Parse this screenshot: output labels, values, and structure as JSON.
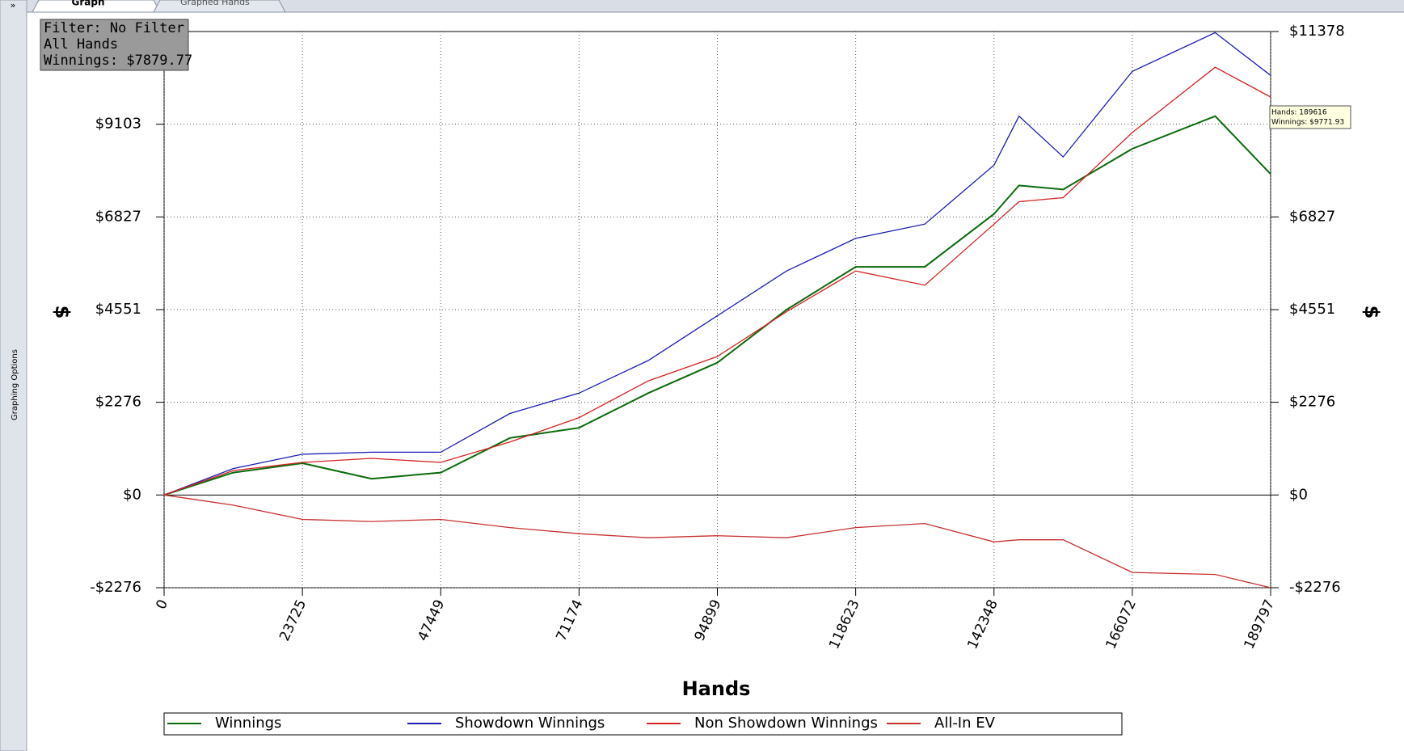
{
  "ui": {
    "sidebar_button": "»",
    "sidebar_label": "Graphing Options",
    "tabs": [
      "Graph",
      "Graphed Hands"
    ],
    "info_box": [
      "Filter: No Filter",
      "All Hands",
      "Winnings: $7879.77"
    ],
    "tooltip": [
      "Hands: 189616",
      "Winnings: $9771.93"
    ]
  },
  "chart_data": {
    "type": "line",
    "x_label": "Hands",
    "y_label": "$",
    "y2_label": "$",
    "x": [
      0,
      11862,
      23725,
      35587,
      47449,
      59312,
      71174,
      83037,
      94899,
      106761,
      118623,
      130486,
      142348,
      146640,
      154210,
      166072,
      180280,
      189797
    ],
    "xlim": [
      0,
      189797
    ],
    "xticks": [
      0,
      23725,
      47449,
      71174,
      94899,
      118623,
      142348,
      166072,
      189797
    ],
    "ylim": [
      -2276,
      11378
    ],
    "yticks": [
      {
        "value": -2276,
        "label": "-$2276"
      },
      {
        "value": 0,
        "label": "$0"
      },
      {
        "value": 2276,
        "label": "$2276"
      },
      {
        "value": 4551,
        "label": "$4551"
      },
      {
        "value": 6827,
        "label": "$6827"
      },
      {
        "value": 9103,
        "label": "$9103"
      }
    ],
    "y2lim": [
      -2276,
      11378
    ],
    "y2ticks": [
      {
        "value": -2276,
        "label": "-$2276"
      },
      {
        "value": 0,
        "label": "$0"
      },
      {
        "value": 2276,
        "label": "$2276"
      },
      {
        "value": 4551,
        "label": "$4551"
      },
      {
        "value": 6827,
        "label": "$6827"
      },
      {
        "value": 11378,
        "label": "$11378"
      }
    ],
    "grid": true,
    "series": [
      {
        "name": "Winnings",
        "color": "#0b6b0b",
        "values": [
          0,
          550,
          780,
          400,
          550,
          1400,
          1650,
          2500,
          3250,
          4550,
          5600,
          5600,
          6900,
          7600,
          7500,
          8500,
          9300,
          7880
        ]
      },
      {
        "name": "Showdown Winnings",
        "color": "#1c1cb4",
        "values": [
          0,
          650,
          1000,
          1050,
          1050,
          2000,
          2500,
          3300,
          4400,
          5500,
          6300,
          6650,
          8100,
          9300,
          8300,
          10400,
          11350,
          10300
        ]
      },
      {
        "name": "Non Showdown Winnings",
        "color": "#d42222",
        "values": [
          0,
          600,
          800,
          900,
          800,
          1300,
          1900,
          2800,
          3400,
          4500,
          5500,
          5150,
          6650,
          7200,
          7300,
          8900,
          10500,
          9770
        ]
      },
      {
        "name": "All-In EV",
        "color": "#c83030",
        "values": [
          0,
          -250,
          -600,
          -650,
          -600,
          -800,
          -950,
          -1050,
          -1000,
          -1050,
          -800,
          -700,
          -1150,
          -1100,
          -1100,
          -1900,
          -1950,
          -2276
        ]
      }
    ]
  }
}
